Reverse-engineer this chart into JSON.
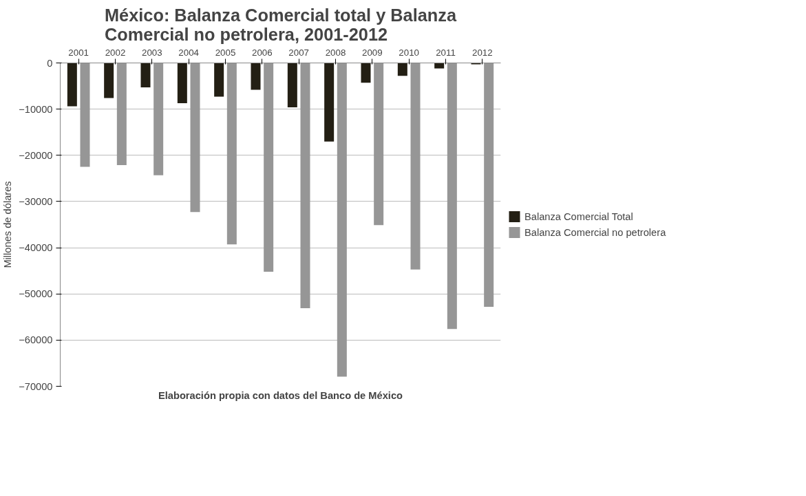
{
  "chart_data": {
    "type": "bar",
    "title": "México: Balanza Comercial total y Balanza\nComercial no petrolera, 2001-2012",
    "xlabel": "Elaboración propia con datos del Banco de México",
    "ylabel": "Millones de dólares",
    "categories": [
      "2001",
      "2002",
      "2003",
      "2004",
      "2005",
      "2006",
      "2007",
      "2008",
      "2009",
      "2010",
      "2011",
      "2012"
    ],
    "series": [
      {
        "name": "Balanza Comercial Total",
        "color": "#231f14",
        "values": [
          -9400,
          -7600,
          -5300,
          -8700,
          -7300,
          -5800,
          -9600,
          -17000,
          -4300,
          -2800,
          -1200,
          -300
        ]
      },
      {
        "name": "Balanza Comercial no petrolera",
        "color": "#969696",
        "values": [
          -22500,
          -22100,
          -24300,
          -32300,
          -39300,
          -45200,
          -53100,
          -67900,
          -35100,
          -44700,
          -57600,
          -52800
        ]
      }
    ],
    "ylim": [
      -70000,
      0
    ],
    "yticks": [
      -70000,
      -60000,
      -50000,
      -40000,
      -30000,
      -20000,
      -10000,
      0
    ],
    "grid": "y",
    "legend": "right"
  }
}
